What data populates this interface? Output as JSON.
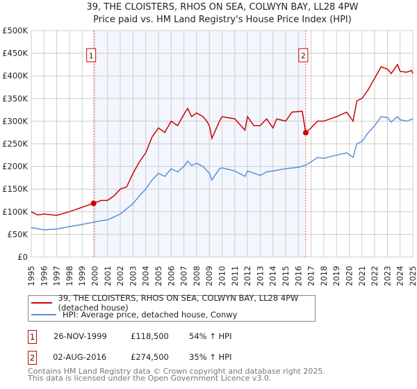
{
  "title_line1": "39, THE CLOISTERS, RHOS ON SEA, COLWYN BAY, LL28 4PW",
  "title_line2": "Price paid vs. HM Land Registry's House Price Index (HPI)",
  "chart_data": {
    "type": "line",
    "title": "39, THE CLOISTERS, RHOS ON SEA, COLWYN BAY, LL28 4PW - Price paid vs. HM Land Registry's House Price Index (HPI)",
    "xlim": [
      1995,
      2025
    ],
    "ylim": [
      0,
      500000
    ],
    "x_ticks": [
      "1995",
      "1996",
      "1997",
      "1998",
      "1999",
      "2000",
      "2001",
      "2002",
      "2003",
      "2004",
      "2005",
      "2006",
      "2007",
      "2008",
      "2009",
      "2010",
      "2011",
      "2012",
      "2013",
      "2014",
      "2015",
      "2016",
      "2017",
      "2018",
      "2019",
      "2020",
      "2021",
      "2022",
      "2023",
      "2024",
      "2025"
    ],
    "y_ticks": [
      {
        "v": 0,
        "label": "£0"
      },
      {
        "v": 50000,
        "label": "£50K"
      },
      {
        "v": 100000,
        "label": "£100K"
      },
      {
        "v": 150000,
        "label": "£150K"
      },
      {
        "v": 200000,
        "label": "£200K"
      },
      {
        "v": 250000,
        "label": "£250K"
      },
      {
        "v": 300000,
        "label": "£300K"
      },
      {
        "v": 350000,
        "label": "£350K"
      },
      {
        "v": 400000,
        "label": "£400K"
      },
      {
        "v": 450000,
        "label": "£450K"
      },
      {
        "v": 500000,
        "label": "£500K"
      }
    ],
    "grid": true,
    "shaded_range": [
      1999.9,
      2016.58
    ],
    "series": [
      {
        "name": "39, THE CLOISTERS, RHOS ON SEA, COLWYN BAY, LL28 4PW (detached house)",
        "color": "#cc0000",
        "x": [
          1995,
          1995.5,
          1996,
          1997,
          1998,
          1999,
          1999.9,
          2000.5,
          2001,
          2001.5,
          2002,
          2002.5,
          2003,
          2003.5,
          2004,
          2004.5,
          2005,
          2005.5,
          2006,
          2006.5,
          2007,
          2007.3,
          2007.6,
          2008,
          2008.5,
          2008.8,
          2009,
          2009.2,
          2009.8,
          2010,
          2011,
          2011.8,
          2012,
          2012.5,
          2013,
          2013.5,
          2014,
          2014.3,
          2015,
          2015.5,
          2016.3,
          2016.58,
          2017,
          2017.5,
          2018,
          2018.5,
          2019,
          2019.8,
          2020.3,
          2020.6,
          2021,
          2021.5,
          2022,
          2022.5,
          2023,
          2023.3,
          2023.8,
          2024,
          2024.5,
          2024.9,
          2025
        ],
        "y": [
          100000,
          93000,
          95000,
          92000,
          100000,
          110000,
          118500,
          125000,
          125000,
          135000,
          150000,
          155000,
          185000,
          210000,
          230000,
          265000,
          285000,
          275000,
          300000,
          290000,
          315000,
          328000,
          310000,
          318000,
          310000,
          300000,
          290000,
          262000,
          300000,
          310000,
          305000,
          280000,
          310000,
          290000,
          290000,
          305000,
          285000,
          305000,
          300000,
          320000,
          322000,
          274500,
          285000,
          300000,
          300000,
          305000,
          310000,
          320000,
          300000,
          345000,
          350000,
          370000,
          395000,
          420000,
          415000,
          405000,
          425000,
          410000,
          408000,
          412000,
          405000
        ]
      },
      {
        "name": "HPI: Average price, detached house, Conwy",
        "color": "#5b8fd4",
        "x": [
          1995,
          1996,
          1997,
          1998,
          1999,
          1999.9,
          2000.5,
          2001,
          2002,
          2003,
          2003.5,
          2004,
          2004.5,
          2005,
          2005.5,
          2006,
          2006.5,
          2007,
          2007.3,
          2007.6,
          2008,
          2008.5,
          2009,
          2009.2,
          2009.8,
          2010,
          2011,
          2011.8,
          2012,
          2013,
          2013.5,
          2014,
          2015,
          2016,
          2016.58,
          2017,
          2017.5,
          2018,
          2019,
          2019.8,
          2020.3,
          2020.6,
          2021,
          2021.5,
          2022,
          2022.5,
          2023,
          2023.3,
          2023.8,
          2024,
          2024.5,
          2025
        ],
        "y": [
          65000,
          60000,
          62000,
          67000,
          72000,
          77000,
          80000,
          82000,
          95000,
          118000,
          135000,
          150000,
          170000,
          185000,
          178000,
          195000,
          188000,
          200000,
          212000,
          202000,
          207000,
          200000,
          185000,
          170000,
          195000,
          197000,
          190000,
          178000,
          190000,
          180000,
          188000,
          190000,
          195000,
          198000,
          203000,
          210000,
          220000,
          218000,
          225000,
          230000,
          220000,
          250000,
          255000,
          275000,
          290000,
          310000,
          308000,
          298000,
          310000,
          303000,
          300000,
          305000
        ]
      }
    ],
    "sales": [
      {
        "label": "1",
        "x": 1999.9,
        "y": 118500
      },
      {
        "label": "2",
        "x": 2016.58,
        "y": 274500
      }
    ],
    "legend_position": "below"
  },
  "legend": [
    {
      "label": "39, THE CLOISTERS, RHOS ON SEA, COLWYN BAY, LL28 4PW (detached house)",
      "color": "#cc0000"
    },
    {
      "label": "HPI: Average price, detached house, Conwy",
      "color": "#5b8fd4"
    }
  ],
  "transactions": [
    {
      "num": "1",
      "date": "26-NOV-1999",
      "price": "£118,500",
      "hpi": "54% ↑ HPI"
    },
    {
      "num": "2",
      "date": "02-AUG-2016",
      "price": "£274,500",
      "hpi": "35% ↑ HPI"
    }
  ],
  "footer_line1": "Contains HM Land Registry data © Crown copyright and database right 2025.",
  "footer_line2": "This data is licensed under the Open Government Licence v3.0."
}
